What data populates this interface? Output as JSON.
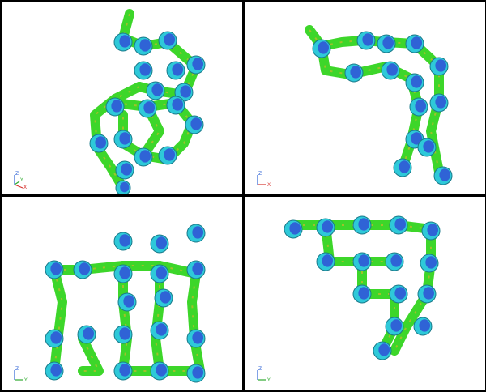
{
  "viewports": [
    {
      "name": "viewport-1",
      "axes": [
        "Z",
        "Y",
        "X"
      ]
    },
    {
      "name": "viewport-2",
      "axes": [
        "Z",
        "X"
      ]
    },
    {
      "name": "viewport-3",
      "axes": [
        "Z",
        "Y"
      ]
    },
    {
      "name": "viewport-4",
      "axes": [
        "Z",
        "Y"
      ]
    }
  ],
  "colors": {
    "background": "#ffffff",
    "border": "#000000",
    "tube_green": "#3dd62a",
    "blob_cyan": "#2ec9d9",
    "blob_blue": "#2f63d6",
    "accent_yellow": "#c9b82c"
  }
}
